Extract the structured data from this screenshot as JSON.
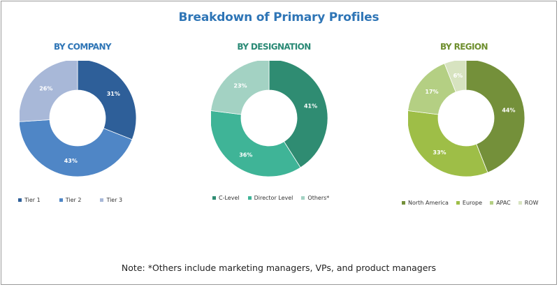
{
  "title": "Breakdown of Primary Profiles",
  "note": "Note: *Others include marketing managers, VPs, and product managers",
  "chart_data": [
    {
      "type": "pie",
      "title": "BY COMPANY",
      "title_color": "#2e75b6",
      "legend_position": "bottom",
      "labels": [
        "Tier 1",
        "Tier 2",
        "Tier 3"
      ],
      "values": [
        31,
        43,
        26
      ],
      "value_labels": [
        "31%",
        "43%",
        "26%"
      ],
      "colors": [
        "#2e5f99",
        "#4f86c6",
        "#a8b8d8"
      ]
    },
    {
      "type": "pie",
      "title": "BY DESIGNATION",
      "title_color": "#2b8a76",
      "legend_position": "bottom",
      "labels": [
        "C-Level",
        "Director Level",
        "Others*"
      ],
      "values": [
        41,
        36,
        23
      ],
      "value_labels": [
        "41%",
        "36%",
        "23%"
      ],
      "colors": [
        "#2f8c72",
        "#3fb497",
        "#a3d2c3"
      ]
    },
    {
      "type": "pie",
      "title": "BY REGION",
      "title_color": "#6f8f2f",
      "legend_position": "bottom",
      "labels": [
        "North America",
        "Europe",
        "APAC",
        "ROW"
      ],
      "values": [
        44,
        33,
        17,
        6
      ],
      "value_labels": [
        "44%",
        "33%",
        "17%",
        "6%"
      ],
      "colors": [
        "#74903a",
        "#9ebe47",
        "#b4cf83",
        "#d7e3c0"
      ]
    }
  ]
}
